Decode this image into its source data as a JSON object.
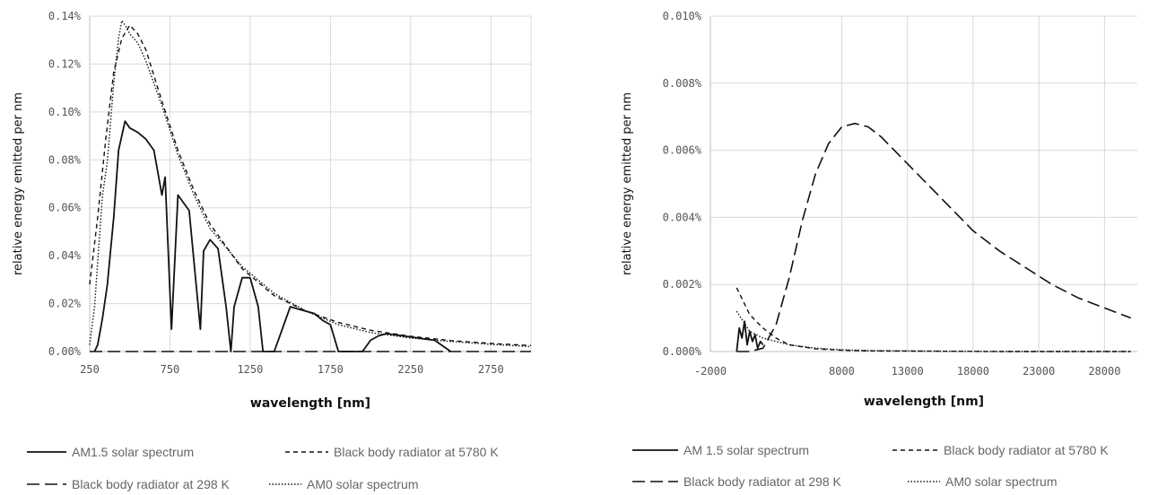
{
  "chart_data": [
    {
      "type": "line",
      "xlabel": "wavelength [nm]",
      "ylabel": "relative energy emitted per nm",
      "xlim": [
        250,
        3000
      ],
      "ylim": [
        0,
        0.15
      ],
      "x_ticks": [
        "250",
        "750",
        "1250",
        "1750",
        "2250",
        "2750"
      ],
      "y_ticks": [
        "0.00%",
        "0.02%",
        "0.04%",
        "0.06%",
        "0.08%",
        "0.10%",
        "0.12%",
        "0.14%"
      ],
      "grid": true,
      "legend_position": "bottom",
      "series": [
        {
          "name": "AM1.5 solar spectrum",
          "style": "solid",
          "x": [
            280,
            300,
            330,
            360,
            400,
            430,
            470,
            500,
            550,
            600,
            650,
            700,
            720,
            760,
            800,
            870,
            900,
            940,
            960,
            1000,
            1050,
            1100,
            1130,
            1150,
            1200,
            1250,
            1300,
            1330,
            1370,
            1400,
            1450,
            1500,
            1550,
            1600,
            1650,
            1700,
            1750,
            1800,
            1850,
            1950,
            2000,
            2050,
            2100,
            2200,
            2300,
            2400,
            2500
          ],
          "y": [
            0.0,
            0.003,
            0.015,
            0.03,
            0.06,
            0.09,
            0.103,
            0.1,
            0.098,
            0.095,
            0.09,
            0.07,
            0.078,
            0.01,
            0.07,
            0.063,
            0.04,
            0.01,
            0.045,
            0.05,
            0.046,
            0.02,
            0.0,
            0.02,
            0.033,
            0.033,
            0.02,
            0.0,
            0.0,
            0.0,
            0.01,
            0.02,
            0.019,
            0.018,
            0.017,
            0.014,
            0.012,
            0.0,
            0.0,
            0.0,
            0.005,
            0.007,
            0.008,
            0.007,
            0.006,
            0.005,
            0.0
          ]
        },
        {
          "name": "Black body radiator at 5780 K",
          "style": "short-dash",
          "x": [
            250,
            300,
            350,
            400,
            450,
            500,
            550,
            600,
            700,
            800,
            900,
            1000,
            1200,
            1400,
            1600,
            1800,
            2000,
            2250,
            2500,
            2750,
            3000
          ],
          "y": [
            0.03,
            0.06,
            0.095,
            0.125,
            0.14,
            0.146,
            0.142,
            0.135,
            0.112,
            0.09,
            0.072,
            0.057,
            0.037,
            0.025,
            0.018,
            0.013,
            0.0095,
            0.0068,
            0.0049,
            0.0036,
            0.0027
          ]
        },
        {
          "name": "Black body radiator at 298 K",
          "style": "long-dash",
          "x": [
            250,
            3000
          ],
          "y": [
            0.0,
            0.0
          ]
        },
        {
          "name": "AM0 solar spectrum",
          "style": "dotted",
          "x": [
            250,
            280,
            300,
            330,
            360,
            400,
            430,
            450,
            480,
            500,
            550,
            600,
            700,
            800,
            900,
            1000,
            1200,
            1400,
            1600,
            1800,
            2000,
            2250,
            2500,
            2750,
            3000
          ],
          "y": [
            0.003,
            0.02,
            0.04,
            0.07,
            0.085,
            0.12,
            0.14,
            0.148,
            0.145,
            0.142,
            0.138,
            0.13,
            0.11,
            0.088,
            0.07,
            0.055,
            0.038,
            0.026,
            0.018,
            0.012,
            0.0085,
            0.006,
            0.0045,
            0.0032,
            0.0022
          ]
        }
      ]
    },
    {
      "type": "line",
      "xlabel": "wavelength [nm]",
      "ylabel": "relative energy emitted per nm",
      "xlim": [
        -2000,
        30500
      ],
      "ylim": [
        0,
        0.01
      ],
      "x_ticks": [
        {
          "v": -2000,
          "label": "-2000"
        },
        {
          "v": 8000,
          "label": "8000"
        },
        {
          "v": 13000,
          "label": "13000"
        },
        {
          "v": 18000,
          "label": "18000"
        },
        {
          "v": 23000,
          "label": "23000"
        },
        {
          "v": 28000,
          "label": "28000"
        }
      ],
      "y_ticks": [
        "0.000%",
        "0.002%",
        "0.004%",
        "0.006%",
        "0.008%",
        "0.010%"
      ],
      "grid": true,
      "legend_position": "bottom",
      "series": [
        {
          "name": "AM 1.5 solar spectrum",
          "style": "solid",
          "x": [
            0,
            200,
            400,
            600,
            800,
            1000,
            1200,
            1400,
            1600,
            1800,
            2000
          ],
          "y": [
            0.0,
            0.0007,
            0.0004,
            0.0009,
            0.0002,
            0.0006,
            0.0003,
            0.0005,
            0.0001,
            0.0003,
            0.0002
          ]
        },
        {
          "name": "Black body radiator at 5780 K",
          "style": "short-dash",
          "x": [
            0,
            1000,
            2000,
            3000,
            4000,
            6000,
            8000,
            10000,
            15000,
            20000,
            25000,
            30000
          ],
          "y": [
            0.0019,
            0.0011,
            0.0007,
            0.0004,
            0.0002,
            8e-05,
            4e-05,
            2e-05,
            1e-05,
            0.0,
            0.0,
            0.0
          ]
        },
        {
          "name": "Black body radiator at 298 K",
          "style": "long-dash",
          "x": [
            0,
            1000,
            2000,
            3000,
            4000,
            5000,
            6000,
            7000,
            8000,
            9000,
            10000,
            11000,
            12000,
            13000,
            14000,
            16000,
            18000,
            20000,
            22000,
            24000,
            26000,
            28000,
            30000
          ],
          "y": [
            0.0,
            0.0,
            0.0001,
            0.0008,
            0.0022,
            0.0039,
            0.0053,
            0.0062,
            0.0067,
            0.0068,
            0.0067,
            0.0064,
            0.006,
            0.0056,
            0.0052,
            0.0044,
            0.0036,
            0.003,
            0.0025,
            0.002,
            0.0016,
            0.0013,
            0.001
          ]
        },
        {
          "name": "AM0 solar spectrum",
          "style": "dotted",
          "x": [
            0,
            500,
            1000,
            1500,
            2000,
            3000,
            4000,
            6000,
            8000,
            10000,
            15000,
            20000,
            25000,
            30000
          ],
          "y": [
            0.0012,
            0.0009,
            0.0006,
            0.0005,
            0.0004,
            0.0003,
            0.0002,
            0.0001,
            5e-05,
            3e-05,
            1e-05,
            0.0,
            0.0,
            0.0
          ]
        }
      ]
    }
  ]
}
